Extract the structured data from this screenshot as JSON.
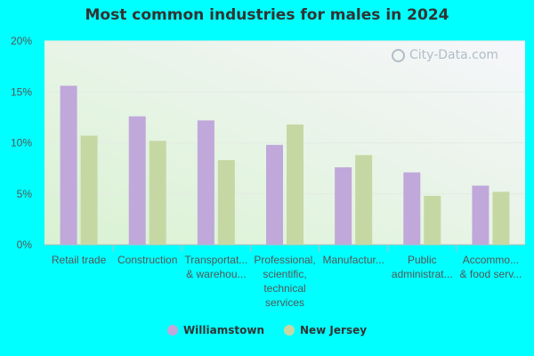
{
  "chart_data": {
    "type": "bar",
    "title": "Most common industries for males in 2024",
    "categories": [
      [
        "Retail trade"
      ],
      [
        "Construction"
      ],
      [
        "Transportat...",
        "& warehou..."
      ],
      [
        "Professional,",
        "scientific,",
        "technical",
        "services"
      ],
      [
        "Manufactur..."
      ],
      [
        "Public",
        "administrat..."
      ],
      [
        "Accommo...",
        "& food serv..."
      ]
    ],
    "series": [
      {
        "name": "Williamstown",
        "color": "#c0a8da",
        "values": [
          15.6,
          12.6,
          12.2,
          9.8,
          7.6,
          7.1,
          5.8
        ]
      },
      {
        "name": "New Jersey",
        "color": "#c5d8a4",
        "values": [
          10.7,
          10.2,
          8.3,
          11.8,
          8.8,
          4.8,
          5.2
        ]
      }
    ],
    "ylim": [
      0,
      20
    ],
    "yticks": [
      "0%",
      "5%",
      "10%",
      "15%",
      "20%"
    ],
    "ytick_values": [
      0,
      5,
      10,
      15,
      20
    ],
    "grid": true,
    "legend_position": "bottom"
  },
  "watermark": "City-Data.com"
}
